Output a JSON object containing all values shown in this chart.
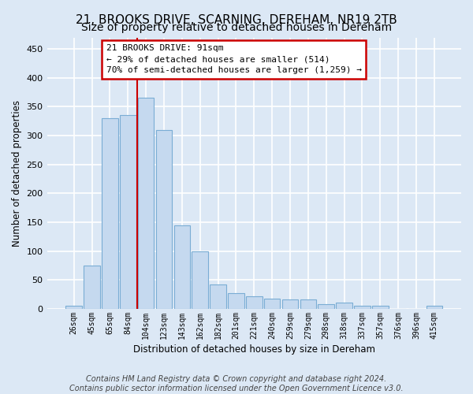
{
  "title": "21, BROOKS DRIVE, SCARNING, DEREHAM, NR19 2TB",
  "subtitle": "Size of property relative to detached houses in Dereham",
  "xlabel": "Distribution of detached houses by size in Dereham",
  "ylabel": "Number of detached properties",
  "categories": [
    "26sqm",
    "45sqm",
    "65sqm",
    "84sqm",
    "104sqm",
    "123sqm",
    "143sqm",
    "162sqm",
    "182sqm",
    "201sqm",
    "221sqm",
    "240sqm",
    "259sqm",
    "279sqm",
    "298sqm",
    "318sqm",
    "337sqm",
    "357sqm",
    "376sqm",
    "396sqm",
    "415sqm"
  ],
  "values": [
    5,
    75,
    330,
    335,
    365,
    310,
    145,
    100,
    42,
    28,
    22,
    18,
    16,
    16,
    8,
    11,
    5,
    5,
    0,
    0,
    5
  ],
  "bar_color": "#c5d9ef",
  "bar_edge_color": "#7aadd4",
  "vline_color": "#cc0000",
  "vline_x": 3.5,
  "annotation_line1": "21 BROOKS DRIVE: 91sqm",
  "annotation_line2": "← 29% of detached houses are smaller (514)",
  "annotation_line3": "70% of semi-detached houses are larger (1,259) →",
  "annotation_box_facecolor": "#ffffff",
  "annotation_box_edgecolor": "#cc0000",
  "ylim": [
    0,
    470
  ],
  "yticks": [
    0,
    50,
    100,
    150,
    200,
    250,
    300,
    350,
    400,
    450
  ],
  "background_color": "#dce8f5",
  "grid_color": "#ffffff",
  "title_fontsize": 11,
  "subtitle_fontsize": 10,
  "footer1": "Contains HM Land Registry data © Crown copyright and database right 2024.",
  "footer2": "Contains public sector information licensed under the Open Government Licence v3.0."
}
